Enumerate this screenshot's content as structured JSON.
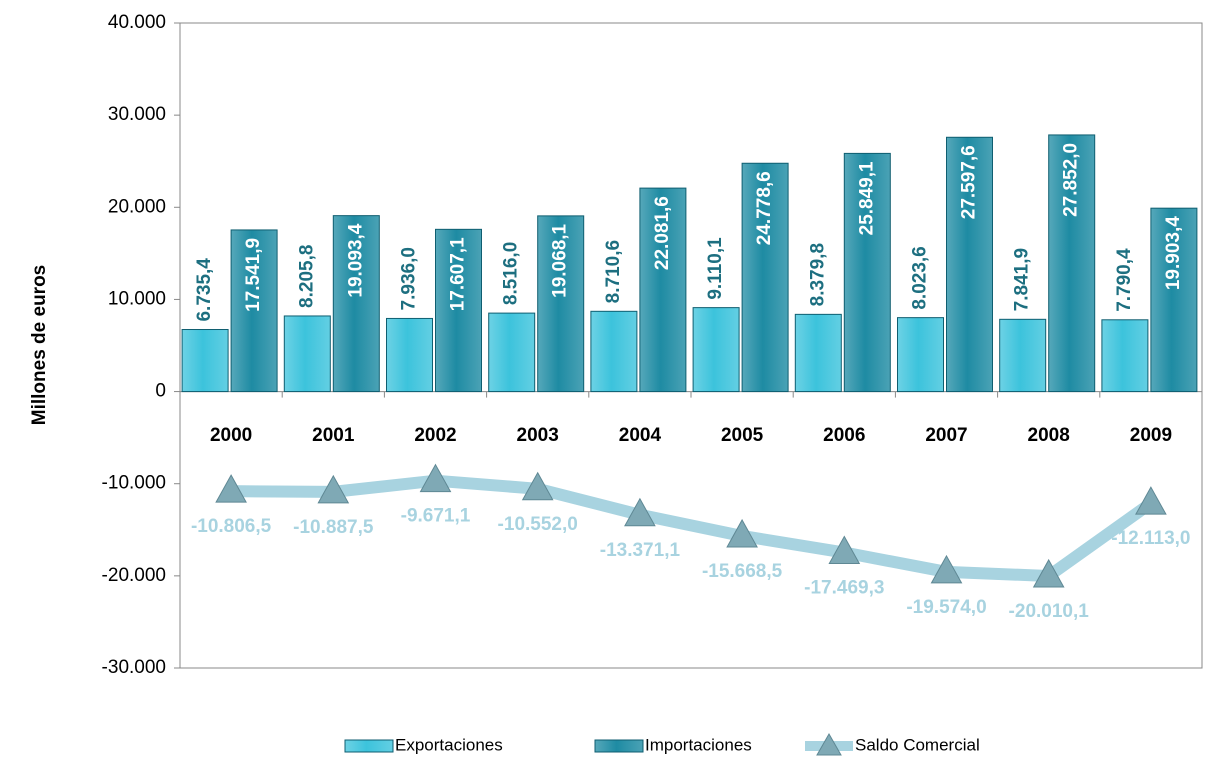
{
  "chart_data": {
    "type": "bar",
    "y_axis_label": "Millones de euros",
    "categories": [
      "2000",
      "2001",
      "2002",
      "2003",
      "2004",
      "2005",
      "2006",
      "2007",
      "2008",
      "2009"
    ],
    "series": [
      {
        "name": "Exportaciones",
        "color": "#3cc3dc",
        "type": "bar",
        "values": [
          6735.4,
          8205.8,
          7936.0,
          8516.0,
          8710.6,
          9110.1,
          8379.8,
          8023.6,
          7841.9,
          7790.4
        ],
        "value_labels": [
          "6.735,4",
          "8.205,8",
          "7.936,0",
          "8.516,0",
          "8.710,6",
          "9.110,1",
          "8.379,8",
          "8.023,6",
          "7.841,9",
          "7.790,4"
        ]
      },
      {
        "name": "Importaciones",
        "color": "#1e8ba3",
        "type": "bar",
        "values": [
          17541.9,
          19093.4,
          17607.1,
          19068.1,
          22081.6,
          24778.6,
          25849.1,
          27597.6,
          27852.0,
          19903.4
        ],
        "value_labels": [
          "17.541,9",
          "19.093,4",
          "17.607,1",
          "19.068,1",
          "22.081,6",
          "24.778,6",
          "25.849,1",
          "27.597,6",
          "27.852,0",
          "19.903,4"
        ]
      },
      {
        "name": "Saldo Comercial",
        "color": "#a8d3e0",
        "type": "line",
        "values": [
          -10806.5,
          -10887.5,
          -9671.1,
          -10552.0,
          -13371.1,
          -15668.5,
          -17469.3,
          -19574.0,
          -20010.1,
          -12113.0
        ],
        "value_labels": [
          "-10.806,5",
          "-10.887,5",
          "-9.671,1",
          "-10.552,0",
          "-13.371,1",
          "-15.668,5",
          "-17.469,3",
          "-19.574,0",
          "-20.010,1",
          "-12.113,0"
        ]
      }
    ],
    "ylim": [
      -30000,
      40000
    ],
    "yticks": [
      {
        "value": -30000,
        "label": "-30.000"
      },
      {
        "value": -20000,
        "label": "-20.000"
      },
      {
        "value": -10000,
        "label": "-10.000"
      },
      0,
      {
        "value": 10000,
        "label": "10.000"
      },
      {
        "value": 20000,
        "label": "20.000"
      },
      {
        "value": 30000,
        "label": "30.000"
      },
      {
        "value": 40000,
        "label": "40.000"
      }
    ],
    "grid": false,
    "legend": "bottom"
  }
}
